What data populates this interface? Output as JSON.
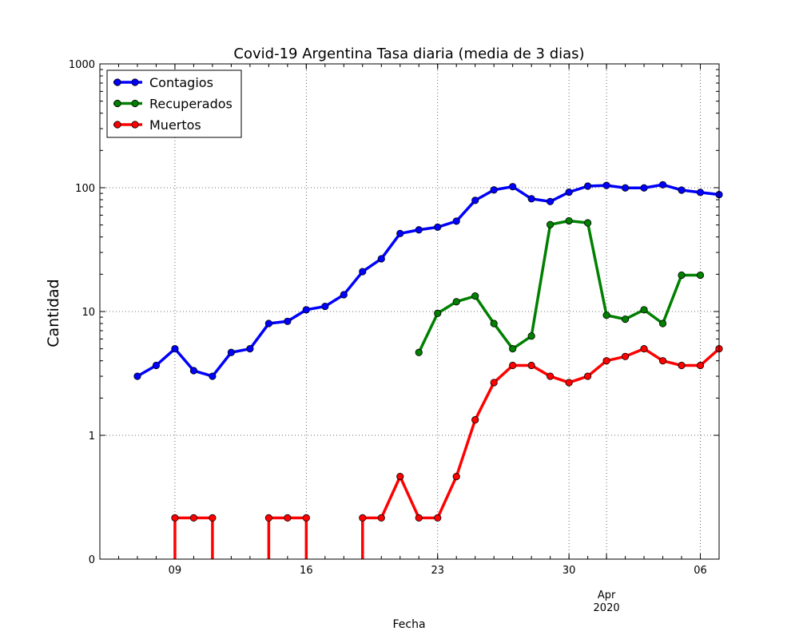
{
  "chart_data": {
    "type": "line",
    "title": "Covid-19 Argentina Tasa diaria (media de 3 dias)",
    "xlabel": "Fecha",
    "ylabel": "Cantidad",
    "y_scale": "symlog",
    "ylim": [
      0,
      1000
    ],
    "xlim": [
      "2020-03-05",
      "2020-04-07"
    ],
    "x_ticks": [
      {
        "date": "2020-03-09",
        "label": "09"
      },
      {
        "date": "2020-03-16",
        "label": "16"
      },
      {
        "date": "2020-03-23",
        "label": "23"
      },
      {
        "date": "2020-03-30",
        "label": "30"
      },
      {
        "date": "2020-04-01",
        "label": "Apr\n2020"
      },
      {
        "date": "2020-04-06",
        "label": "06"
      }
    ],
    "y_ticks": [
      {
        "value": 0,
        "label": "0"
      },
      {
        "value": 1,
        "label": "1"
      },
      {
        "value": 10,
        "label": "10"
      },
      {
        "value": 100,
        "label": "100"
      },
      {
        "value": 1000,
        "label": "1000"
      }
    ],
    "grid": true,
    "legend_position": "upper-left",
    "series": [
      {
        "name": "Contagios",
        "color": "#0000ff",
        "points": [
          [
            "2020-03-07",
            3.0
          ],
          [
            "2020-03-08",
            3.67
          ],
          [
            "2020-03-09",
            5.0
          ],
          [
            "2020-03-10",
            3.33
          ],
          [
            "2020-03-11",
            3.0
          ],
          [
            "2020-03-12",
            4.67
          ],
          [
            "2020-03-13",
            5.0
          ],
          [
            "2020-03-14",
            8.0
          ],
          [
            "2020-03-15",
            8.33
          ],
          [
            "2020-03-16",
            10.33
          ],
          [
            "2020-03-17",
            11.0
          ],
          [
            "2020-03-18",
            13.67
          ],
          [
            "2020-03-19",
            21.0
          ],
          [
            "2020-03-20",
            26.67
          ],
          [
            "2020-03-21",
            42.67
          ],
          [
            "2020-03-22",
            45.67
          ],
          [
            "2020-03-23",
            48.0
          ],
          [
            "2020-03-24",
            53.67
          ],
          [
            "2020-03-25",
            79.0
          ],
          [
            "2020-03-26",
            96.0
          ],
          [
            "2020-03-27",
            102.0
          ],
          [
            "2020-03-28",
            81.33
          ],
          [
            "2020-03-29",
            77.33
          ],
          [
            "2020-03-30",
            92.0
          ],
          [
            "2020-03-31",
            103.0
          ],
          [
            "2020-04-01",
            104.33
          ],
          [
            "2020-04-02",
            99.67
          ],
          [
            "2020-04-03",
            99.67
          ],
          [
            "2020-04-04",
            105.67
          ],
          [
            "2020-04-05",
            95.67
          ],
          [
            "2020-04-06",
            91.67
          ],
          [
            "2020-04-07",
            88.0
          ]
        ]
      },
      {
        "name": "Recuperados",
        "color": "#008000",
        "points": [
          [
            "2020-03-22",
            4.67
          ],
          [
            "2020-03-23",
            9.67
          ],
          [
            "2020-03-24",
            12.0
          ],
          [
            "2020-03-25",
            13.33
          ],
          [
            "2020-03-26",
            8.0
          ],
          [
            "2020-03-27",
            5.0
          ],
          [
            "2020-03-28",
            6.33
          ],
          [
            "2020-03-29",
            50.33
          ],
          [
            "2020-03-30",
            54.0
          ],
          [
            "2020-03-31",
            52.0
          ],
          [
            "2020-04-01",
            9.33
          ],
          [
            "2020-04-02",
            8.67
          ],
          [
            "2020-04-03",
            10.33
          ],
          [
            "2020-04-04",
            8.0
          ],
          [
            "2020-04-05",
            19.67
          ],
          [
            "2020-04-06",
            19.67
          ]
        ]
      },
      {
        "name": "Muertos",
        "color": "#ff0000",
        "points": [
          [
            "2020-03-09",
            0.333
          ],
          [
            "2020-03-10",
            0.333
          ],
          [
            "2020-03-11",
            0.333
          ],
          [
            "2020-03-14",
            0.333
          ],
          [
            "2020-03-15",
            0.333
          ],
          [
            "2020-03-16",
            0.333
          ],
          [
            "2020-03-19",
            0.333
          ],
          [
            "2020-03-20",
            0.333
          ],
          [
            "2020-03-21",
            0.667
          ],
          [
            "2020-03-22",
            0.333
          ],
          [
            "2020-03-23",
            0.333
          ],
          [
            "2020-03-24",
            0.667
          ],
          [
            "2020-03-25",
            1.333
          ],
          [
            "2020-03-26",
            2.667
          ],
          [
            "2020-03-27",
            3.667
          ],
          [
            "2020-03-28",
            3.667
          ],
          [
            "2020-03-29",
            3.0
          ],
          [
            "2020-03-30",
            2.667
          ],
          [
            "2020-03-31",
            3.0
          ],
          [
            "2020-04-01",
            4.0
          ],
          [
            "2020-04-02",
            4.333
          ],
          [
            "2020-04-03",
            5.0
          ],
          [
            "2020-04-04",
            4.0
          ],
          [
            "2020-04-05",
            3.667
          ],
          [
            "2020-04-06",
            3.667
          ],
          [
            "2020-04-07",
            5.0
          ]
        ],
        "zero_drops": [
          {
            "from": "2020-03-09",
            "to": "2020-03-11"
          },
          {
            "from": "2020-03-14",
            "to": "2020-03-16"
          },
          {
            "from": "2020-03-19",
            "to": null
          }
        ]
      }
    ]
  }
}
